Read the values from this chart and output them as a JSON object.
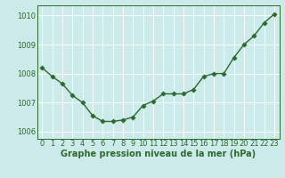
{
  "x": [
    0,
    1,
    2,
    3,
    4,
    5,
    6,
    7,
    8,
    9,
    10,
    11,
    12,
    13,
    14,
    15,
    16,
    17,
    18,
    19,
    20,
    21,
    22,
    23
  ],
  "y": [
    1008.2,
    1007.9,
    1007.65,
    1007.25,
    1007.0,
    1006.55,
    1006.35,
    1006.35,
    1006.4,
    1006.5,
    1006.9,
    1007.05,
    1007.3,
    1007.3,
    1007.3,
    1007.45,
    1007.9,
    1008.0,
    1008.0,
    1008.55,
    1009.0,
    1009.3,
    1009.75,
    1010.05
  ],
  "line_color": "#2d6a2d",
  "marker_color": "#2d6a2d",
  "bg_color": "#cdeaea",
  "grid_color": "#ffffff",
  "xlabel": "Graphe pression niveau de la mer (hPa)",
  "xlabel_color": "#2d6a2d",
  "tick_color": "#2d6a2d",
  "ylim": [
    1005.75,
    1010.35
  ],
  "yticks": [
    1006,
    1007,
    1008,
    1009,
    1010
  ],
  "xlim": [
    -0.5,
    23.5
  ],
  "xticks": [
    0,
    1,
    2,
    3,
    4,
    5,
    6,
    7,
    8,
    9,
    10,
    11,
    12,
    13,
    14,
    15,
    16,
    17,
    18,
    19,
    20,
    21,
    22,
    23
  ],
  "xtick_labels": [
    "0",
    "1",
    "2",
    "3",
    "4",
    "5",
    "6",
    "7",
    "8",
    "9",
    "10",
    "11",
    "12",
    "13",
    "14",
    "15",
    "16",
    "17",
    "18",
    "19",
    "20",
    "21",
    "22",
    "23"
  ],
  "marker_size": 2.8,
  "line_width": 1.0,
  "font_size_xlabel": 7,
  "font_size_ticks": 6
}
